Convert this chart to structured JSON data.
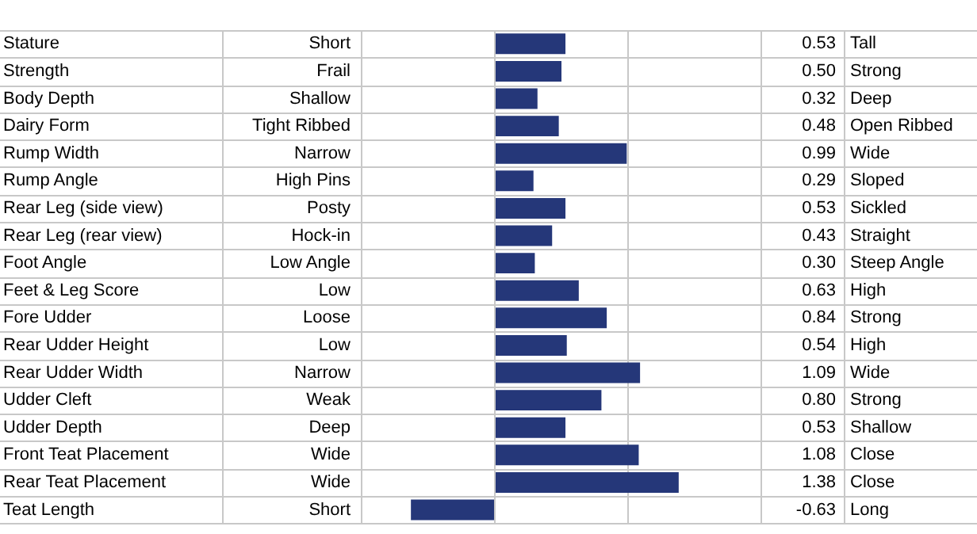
{
  "chart_data": {
    "type": "bar",
    "orientation": "horizontal",
    "categories": [
      "Stature",
      "Strength",
      "Body Depth",
      "Dairy Form",
      "Rump Width",
      "Rump Angle",
      "Rear Leg (side view)",
      "Rear Leg (rear view)",
      "Foot Angle",
      "Feet & Leg Score",
      "Fore Udder",
      "Rear Udder Height",
      "Rear Udder Width",
      "Udder Cleft",
      "Udder Depth",
      "Front Teat Placement",
      "Rear Teat Placement",
      "Teat Length"
    ],
    "values": [
      0.53,
      0.5,
      0.32,
      0.48,
      0.99,
      0.29,
      0.53,
      0.43,
      0.3,
      0.63,
      0.84,
      0.54,
      1.09,
      0.8,
      0.53,
      1.08,
      1.38,
      -0.63
    ],
    "value_labels": [
      "0.53",
      "0.50",
      "0.32",
      "0.48",
      "0.99",
      "0.29",
      "0.53",
      "0.43",
      "0.30",
      "0.63",
      "0.84",
      "0.54",
      "1.09",
      "0.80",
      "0.53",
      "1.08",
      "1.38",
      "-0.63"
    ],
    "color": "#253779",
    "tick_labels": "y",
    "grid": true,
    "legend": false,
    "annotations": [
      "Short",
      "Tall",
      "Frail",
      "Strong",
      "Shallow",
      "Deep",
      "Tight Ribbed",
      "Open Ribbed",
      "Narrow",
      "Wide",
      "High Pins",
      "Sloped",
      "Posty",
      "Sickled",
      "Hock-in",
      "Straight",
      "Low Angle",
      "Steep Angle",
      "Low",
      "High",
      "Loose",
      "Strong",
      "Low",
      "High",
      "Narrow",
      "Wide",
      "Weak",
      "Strong",
      "Deep",
      "Shallow",
      "Wide",
      "Close",
      "Wide",
      "Close",
      "Short",
      "Long"
    ]
  }
}
